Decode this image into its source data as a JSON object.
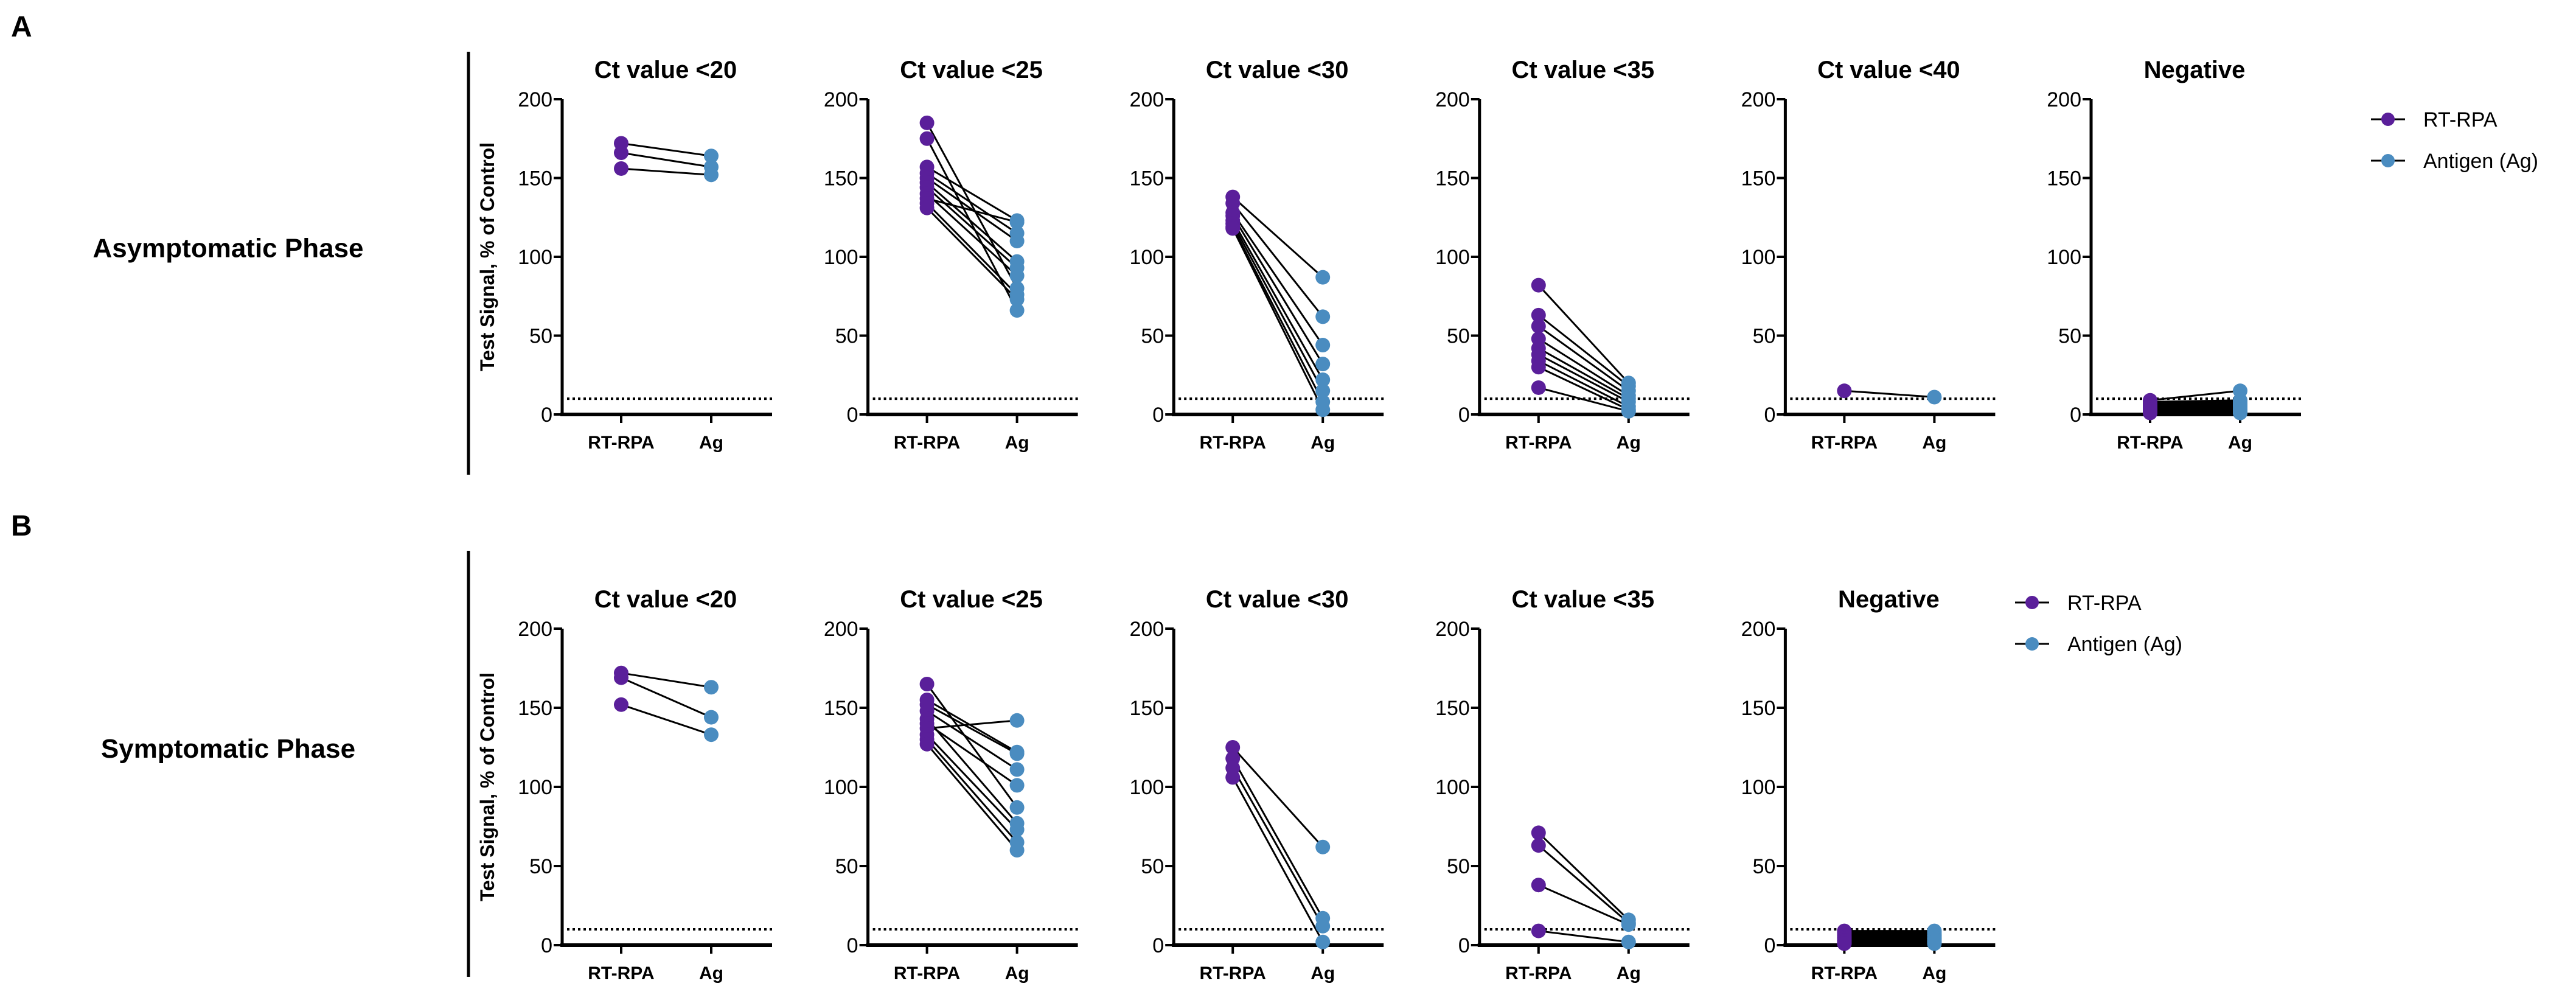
{
  "figure": {
    "panel_labels": [
      "A",
      "B"
    ],
    "row_labels": [
      "Asymptomatic Phase",
      "Symptomatic Phase"
    ],
    "ylabel": "Test Signal, % of Control",
    "legend": [
      "RT-RPA",
      "Antigen (Ag)"
    ],
    "colors": {
      "rt_rpa": "#5a1f9a",
      "antigen": "#4a8cc0",
      "line": "#000000"
    }
  },
  "chart_data": [
    {
      "type": "line",
      "row": "A",
      "phase": "Asymptomatic Phase",
      "ylim": [
        0,
        200
      ],
      "yticks": [
        "0",
        "50",
        "100",
        "150",
        "200"
      ],
      "xticks": [
        "RT-RPA",
        "Ag"
      ],
      "threshold": 10,
      "panels": [
        {
          "title": "Ct value <20",
          "rt_rpa": [
            172,
            166,
            156
          ],
          "ag": [
            164,
            157,
            152
          ]
        },
        {
          "title": "Ct value <25",
          "rt_rpa": [
            185,
            175,
            157,
            153,
            150,
            147,
            144,
            140,
            137,
            134,
            131
          ],
          "ag": [
            80,
            66,
            123,
            115,
            110,
            97,
            93,
            88,
            122,
            76,
            73
          ]
        },
        {
          "title": "Ct value <30",
          "rt_rpa": [
            138,
            134,
            128,
            126,
            123,
            121,
            119,
            118
          ],
          "ag": [
            87,
            62,
            44,
            32,
            22,
            15,
            8,
            3
          ]
        },
        {
          "title": "Ct value <35",
          "rt_rpa": [
            82,
            63,
            56,
            48,
            42,
            38,
            34,
            30,
            17
          ],
          "ag": [
            20,
            18,
            15,
            12,
            10,
            8,
            5,
            3,
            2
          ]
        },
        {
          "title": "Ct value <40",
          "rt_rpa": [
            15
          ],
          "ag": [
            11
          ]
        },
        {
          "title": "Negative",
          "rt_rpa": [
            9,
            8,
            7,
            6,
            6,
            5,
            5,
            4,
            4,
            3,
            3,
            2,
            2,
            1,
            1
          ],
          "ag": [
            15,
            9,
            8,
            7,
            6,
            6,
            5,
            5,
            4,
            3,
            3,
            2,
            2,
            1,
            1
          ]
        }
      ]
    },
    {
      "type": "line",
      "row": "B",
      "phase": "Symptomatic Phase",
      "ylim": [
        0,
        200
      ],
      "yticks": [
        "0",
        "50",
        "100",
        "150",
        "200"
      ],
      "xticks": [
        "RT-RPA",
        "Ag"
      ],
      "threshold": 10,
      "panels": [
        {
          "title": "Ct value <20",
          "rt_rpa": [
            172,
            169,
            152
          ],
          "ag": [
            163,
            144,
            133
          ]
        },
        {
          "title": "Ct value <25",
          "rt_rpa": [
            165,
            155,
            152,
            148,
            143,
            140,
            137,
            133,
            130,
            127
          ],
          "ag": [
            87,
            122,
            121,
            111,
            77,
            101,
            142,
            73,
            65,
            60
          ]
        },
        {
          "title": "Ct value <30",
          "rt_rpa": [
            125,
            118,
            112,
            106
          ],
          "ag": [
            62,
            17,
            12,
            2
          ]
        },
        {
          "title": "Ct value <35",
          "rt_rpa": [
            71,
            63,
            38,
            9
          ],
          "ag": [
            16,
            14,
            13,
            2
          ]
        },
        {
          "title": "Negative",
          "rt_rpa": [
            9,
            8,
            7,
            6,
            5,
            5,
            4,
            3,
            3,
            2,
            1,
            1
          ],
          "ag": [
            9,
            8,
            7,
            6,
            6,
            5,
            4,
            4,
            3,
            2,
            2,
            1
          ]
        }
      ]
    }
  ]
}
